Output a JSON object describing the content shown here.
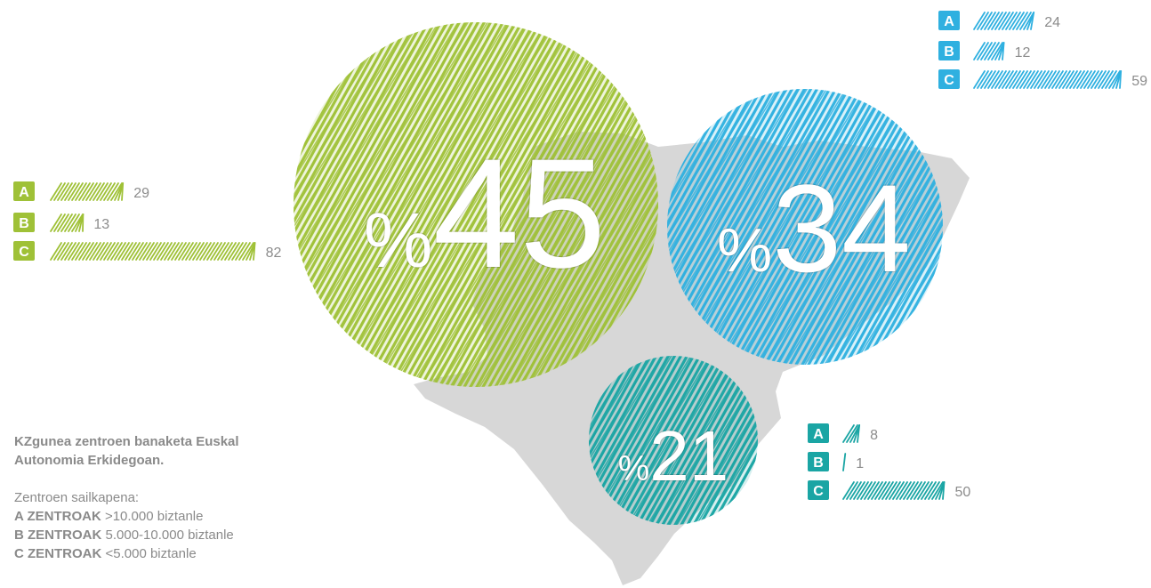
{
  "colors": {
    "green": "#9fc137",
    "blue": "#2fb0e0",
    "teal": "#1aa5a4",
    "map": "#d7d7d7",
    "text": "#8c8c8c"
  },
  "chart_data": {
    "type": "bar",
    "categories": [
      "A",
      "B",
      "C"
    ],
    "series": [
      {
        "percent_label": "%45",
        "percent": 45,
        "values": [
          29,
          13,
          82
        ]
      },
      {
        "percent_label": "%34",
        "percent": 34,
        "values": [
          24,
          12,
          59
        ]
      },
      {
        "percent_label": "%21",
        "percent": 21,
        "values": [
          8,
          1,
          50
        ]
      }
    ]
  },
  "notes": {
    "title_line1": "KZgunea zentroen banaketa Euskal",
    "title_line2": "Autonomia Erkidegoan.",
    "class_heading": "Zentroen sailkapena:",
    "items": [
      {
        "bold": "A ZENTROAK",
        "text": " >10.000 biztanle"
      },
      {
        "bold": "B ZENTROAK",
        "text": " 5.000-10.000 biztanle"
      },
      {
        "bold": "C ZENTROAK",
        "text": " <5.000 biztanle"
      }
    ]
  }
}
